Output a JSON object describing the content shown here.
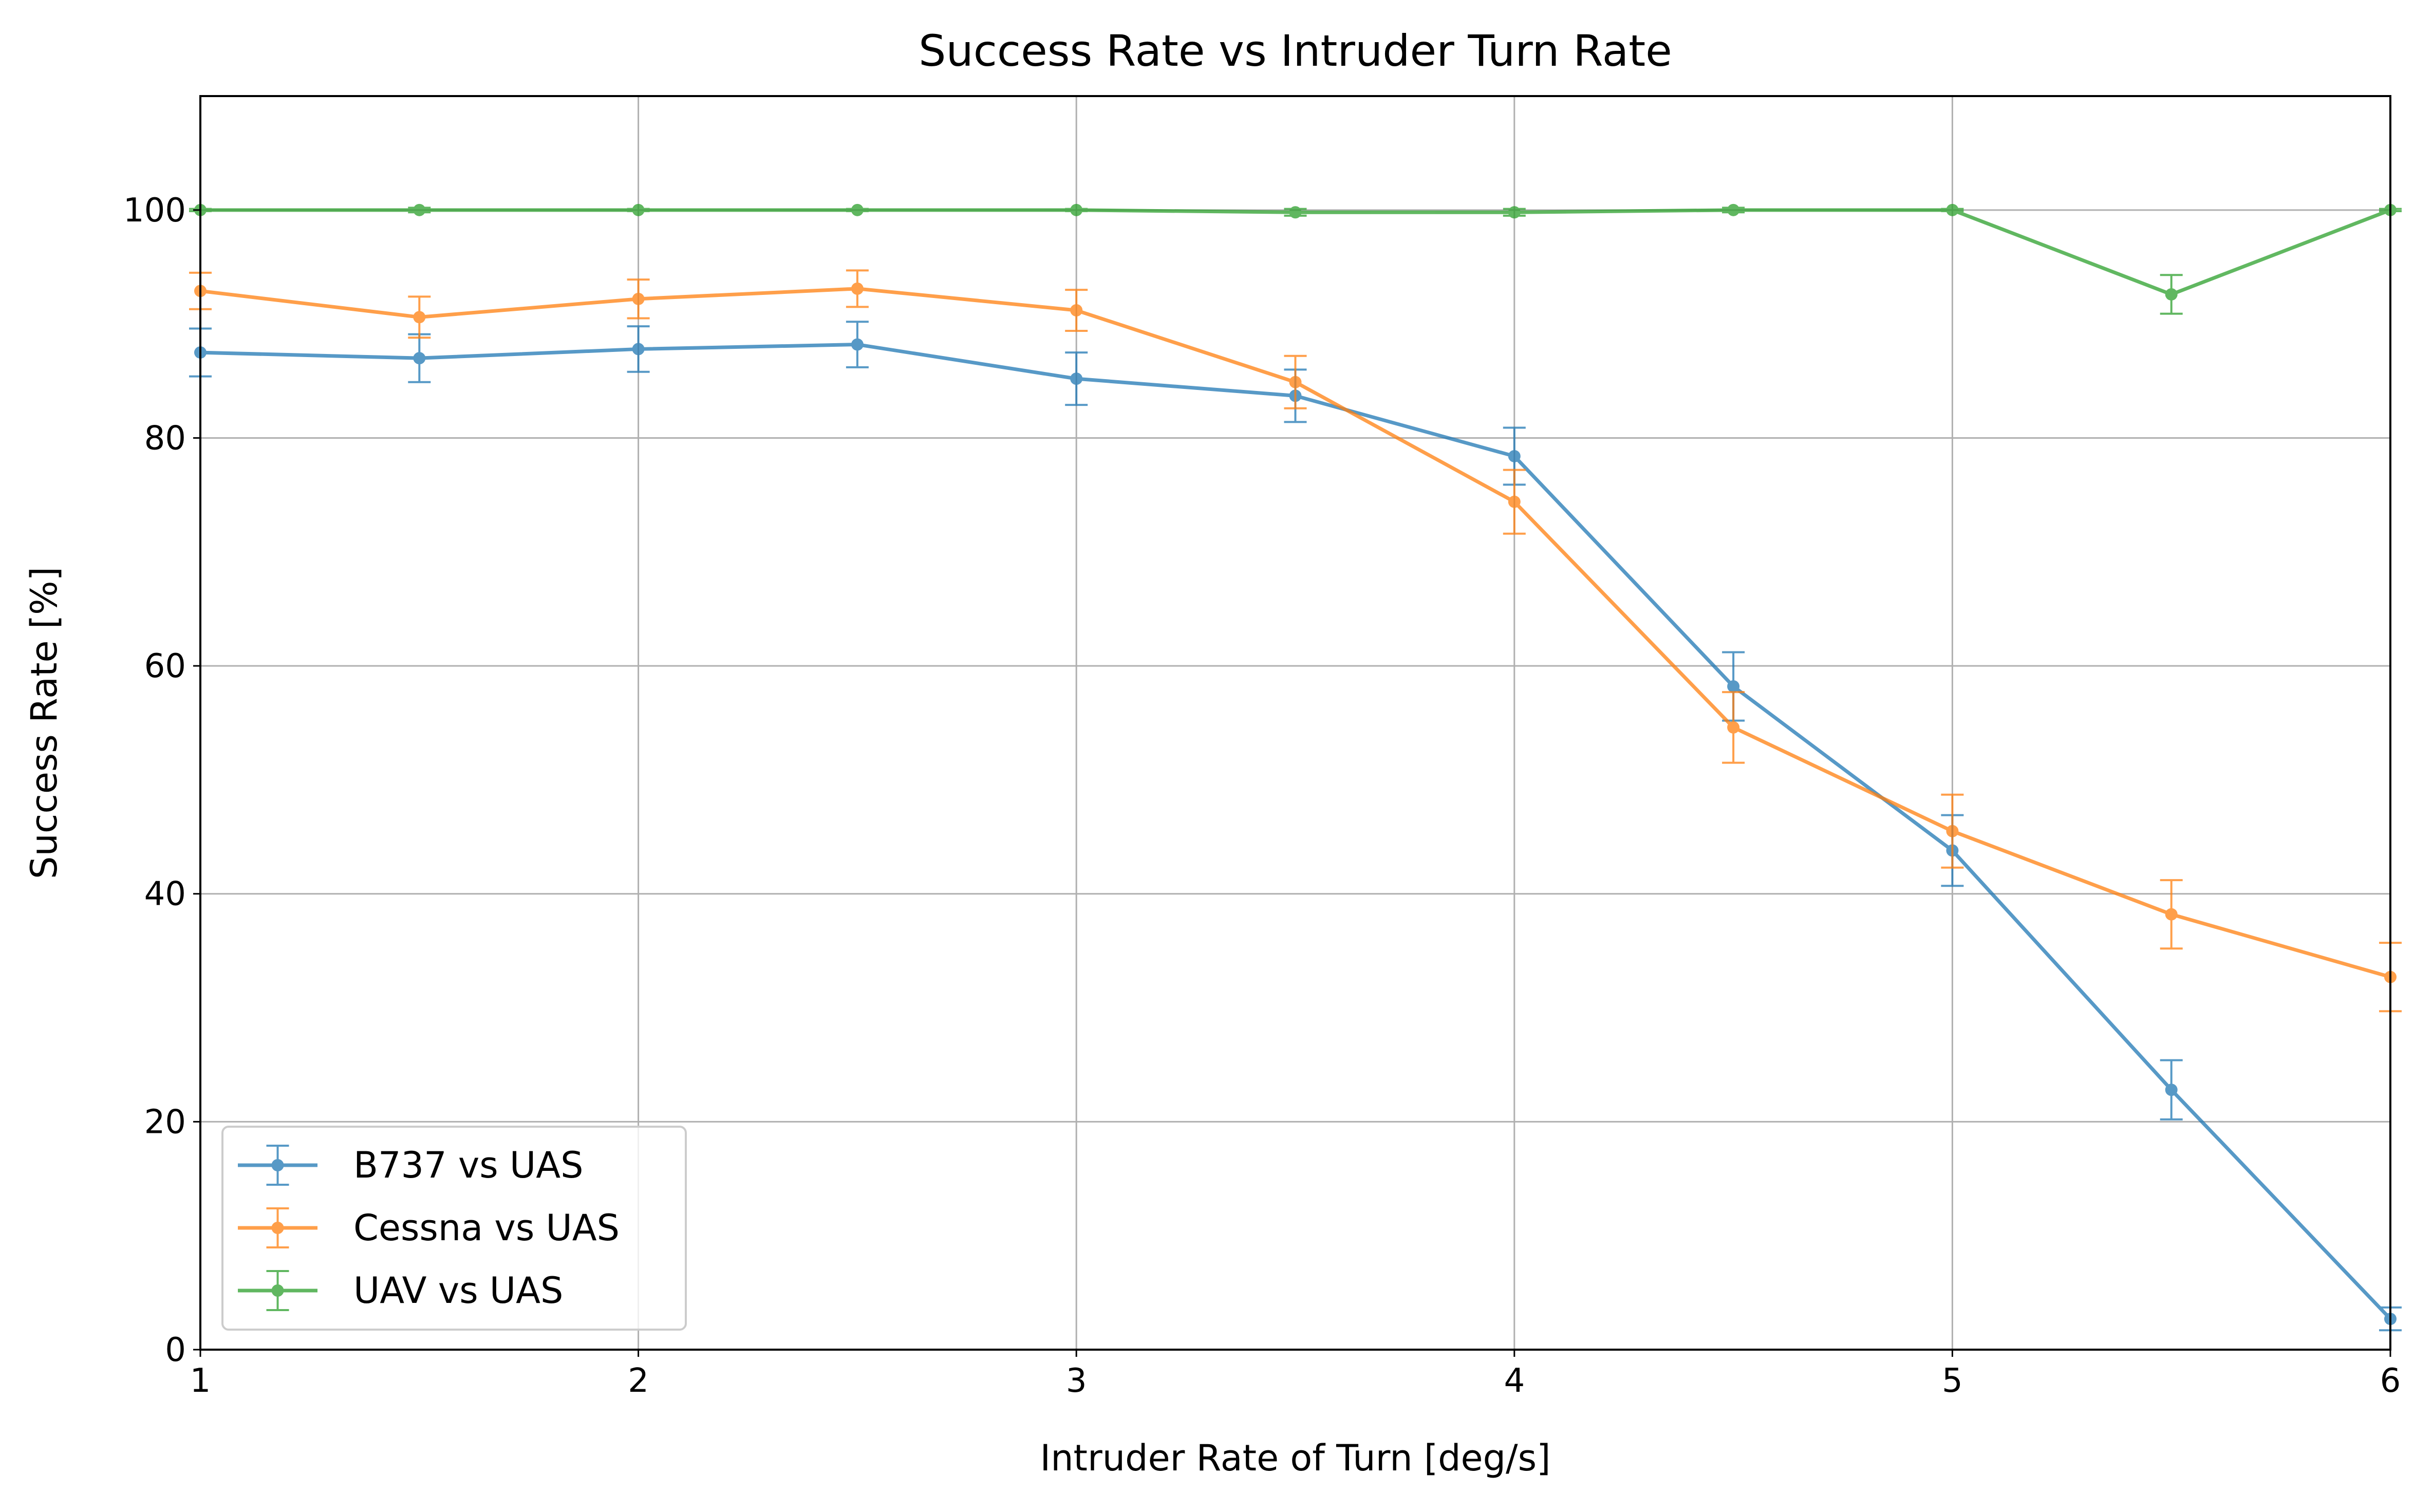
{
  "chart_data": {
    "type": "line",
    "title": "Success Rate vs Intruder Turn Rate",
    "xlabel": "Intruder Rate of Turn [deg/s]",
    "ylabel": "Success Rate [%]",
    "xlim": [
      1,
      6
    ],
    "ylim": [
      0,
      110
    ],
    "x_ticks": [
      1,
      2,
      3,
      4,
      5,
      6
    ],
    "y_ticks": [
      0,
      20,
      40,
      60,
      80,
      100
    ],
    "grid": true,
    "legend_position": "lower-left",
    "x": [
      1.0,
      1.5,
      2.0,
      2.5,
      3.0,
      3.5,
      4.0,
      4.5,
      5.0,
      5.5,
      6.0
    ],
    "series": [
      {
        "name": "B737 vs UAS",
        "color": "#1f77b4",
        "values": [
          87.5,
          87.0,
          87.8,
          88.2,
          85.2,
          83.7,
          78.4,
          58.2,
          43.8,
          22.8,
          2.7
        ],
        "errors": [
          2.1,
          2.1,
          2.0,
          2.0,
          2.3,
          2.3,
          2.5,
          3.0,
          3.1,
          2.6,
          1.0
        ]
      },
      {
        "name": "Cessna vs UAS",
        "color": "#ff7f0e",
        "values": [
          92.9,
          90.6,
          92.2,
          93.1,
          91.2,
          84.9,
          74.4,
          54.6,
          45.5,
          38.2,
          32.7
        ],
        "errors": [
          1.6,
          1.8,
          1.7,
          1.6,
          1.8,
          2.3,
          2.8,
          3.1,
          3.2,
          3.0,
          3.0
        ]
      },
      {
        "name": "UAV vs UAS",
        "color": "#2ca02c",
        "values": [
          100.0,
          100.0,
          100.0,
          100.0,
          100.0,
          99.8,
          99.8,
          100.0,
          100.0,
          92.6,
          100.0
        ],
        "errors": [
          0.1,
          0.2,
          0.1,
          0.1,
          0.1,
          0.3,
          0.3,
          0.2,
          0.1,
          1.7,
          0.1
        ]
      }
    ]
  }
}
